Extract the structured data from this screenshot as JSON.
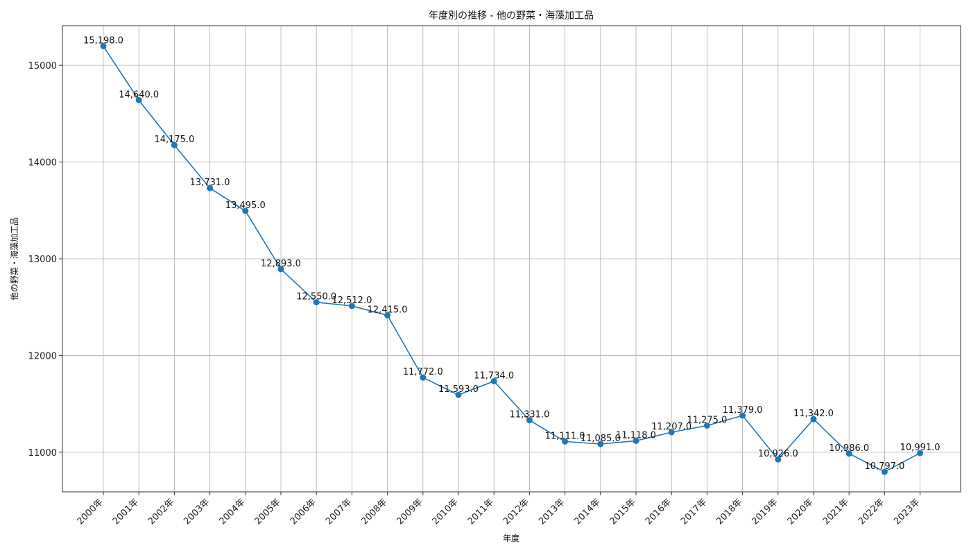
{
  "chart_data": {
    "type": "line",
    "title": "年度別の推移 - 他の野菜・海藻加工品",
    "xlabel": "年度",
    "ylabel": "他の野菜・海藻加工品",
    "categories": [
      "2000年",
      "2001年",
      "2002年",
      "2003年",
      "2004年",
      "2005年",
      "2006年",
      "2007年",
      "2008年",
      "2009年",
      "2010年",
      "2011年",
      "2012年",
      "2013年",
      "2014年",
      "2015年",
      "2016年",
      "2017年",
      "2018年",
      "2019年",
      "2020年",
      "2021年",
      "2022年",
      "2023年"
    ],
    "series": [
      {
        "values": [
          15198,
          14640,
          14175,
          13731,
          13495,
          12893,
          12550,
          12512,
          12415,
          11772,
          11593,
          11734,
          11331,
          11111,
          11085,
          11118,
          11207,
          11275,
          11379,
          10926,
          11342,
          10986,
          10797,
          10991
        ],
        "color": "#1f77b4"
      }
    ],
    "data_labels": [
      "15,198.0",
      "14,640.0",
      "14,175.0",
      "13,731.0",
      "13,495.0",
      "12,893.0",
      "12,550.0",
      "12,512.0",
      "12,415.0",
      "11,772.0",
      "11,593.0",
      "11,734.0",
      "11,331.0",
      "11,111.0",
      "11,085.0",
      "11,118.0",
      "11,207.0",
      "11,275.0",
      "11,379.0",
      "10,926.0",
      "11,342.0",
      "10,986.0",
      "10,797.0",
      "10,991.0"
    ],
    "yticks": [
      11000,
      12000,
      13000,
      14000,
      15000
    ],
    "ylim": [
      10590,
      15410
    ],
    "grid": true,
    "marker": "circle"
  }
}
